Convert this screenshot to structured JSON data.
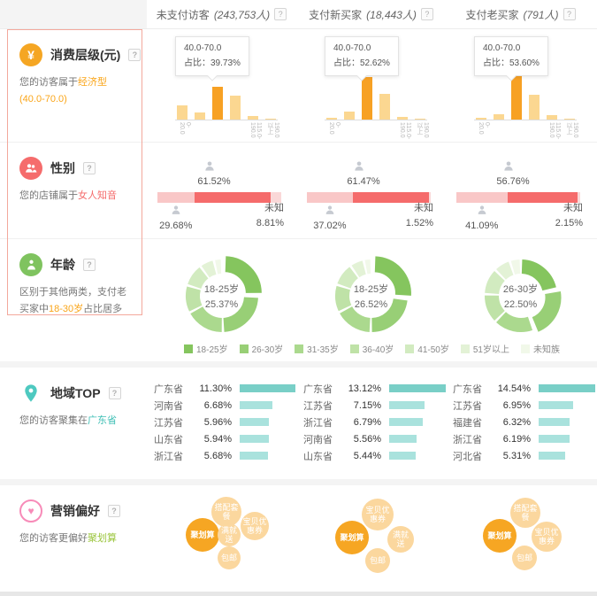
{
  "header": {
    "help_icon": "?",
    "columns": [
      {
        "label": "未支付访客",
        "count": "(243,753人)"
      },
      {
        "label": "支付新买家",
        "count": "(18,443人)"
      },
      {
        "label": "支付老买家",
        "count": "(791人)"
      }
    ]
  },
  "sidebar": {
    "help_icon": "?",
    "rows": [
      {
        "title": "消费层级(元)",
        "icon": "yen-icon",
        "icon_glyph": "¥",
        "desc_prefix": "您的访客属于",
        "desc_highlight": "经济型(40.0-70.0)",
        "desc_suffix": ""
      },
      {
        "title": "性别",
        "icon": "gender-people-icon",
        "desc_prefix": "您的店铺属于",
        "desc_highlight": "女人知音",
        "desc_suffix": ""
      },
      {
        "title": "年龄",
        "icon": "age-person-icon",
        "desc_prefix": "区别于其他两类，支付老买家中",
        "desc_highlight": "18-30岁",
        "desc_suffix": "占比居多"
      },
      {
        "title": "地域TOP",
        "icon": "location-pin-icon",
        "desc_prefix": "您的访客聚集在",
        "desc_highlight": "广东省",
        "desc_suffix": ""
      },
      {
        "title": "营销偏好",
        "icon": "heart-icon",
        "icon_glyph": "♥",
        "desc_prefix": "您的访客更偏好",
        "desc_highlight": "聚划算",
        "desc_suffix": ""
      }
    ]
  },
  "chart_data": {
    "consumption": {
      "type": "bar",
      "title": "消费层级(元)",
      "categories": [
        "0-20.0",
        "20.0-40.0",
        "40.0-70.0",
        "70.0-115.0",
        "115.0-190.0",
        "190.0以上"
      ],
      "highlight_index": 2,
      "bar_color": "#FBD791",
      "highlight_color": "#F7A124",
      "series": [
        {
          "name": "未支付访客",
          "tooltip_title": "40.0-70.0",
          "tooltip_label": "占比：",
          "tooltip_value": "39.73%",
          "values": [
            17,
            9,
            39.73,
            29,
            4,
            1.2
          ]
        },
        {
          "name": "支付新买家",
          "tooltip_title": "40.0-70.0",
          "tooltip_label": "占比：",
          "tooltip_value": "52.62%",
          "values": [
            2.5,
            10,
            52.62,
            31,
            3.5,
            1.2
          ]
        },
        {
          "name": "支付老买家",
          "tooltip_title": "40.0-70.0",
          "tooltip_label": "占比：",
          "tooltip_value": "53.60%",
          "values": [
            2.5,
            6.5,
            53.6,
            30,
            5,
            1.5
          ]
        }
      ]
    },
    "gender": {
      "type": "stacked-bar",
      "title": "性别",
      "unknown_label": "未知",
      "colors": {
        "male": "#F9C7C7",
        "female": "#F56B6B",
        "unknown": "#FAD8D8"
      },
      "series": [
        {
          "name": "未支付访客",
          "male": 29.68,
          "female": 61.52,
          "unknown": 8.81,
          "male_pct": "29.68%",
          "female_pct": "61.52%",
          "unknown_pct": "8.81%"
        },
        {
          "name": "支付新买家",
          "male": 37.02,
          "female": 61.47,
          "unknown": 1.52,
          "male_pct": "37.02%",
          "female_pct": "61.47%",
          "unknown_pct": "1.52%"
        },
        {
          "name": "支付老买家",
          "male": 41.09,
          "female": 56.76,
          "unknown": 2.15,
          "male_pct": "41.09%",
          "female_pct": "56.76%",
          "unknown_pct": "2.15%"
        }
      ]
    },
    "age": {
      "type": "donut",
      "title": "年龄",
      "legend": [
        "18-25岁",
        "26-30岁",
        "31-35岁",
        "36-40岁",
        "41-50岁",
        "51岁以上",
        "未知族"
      ],
      "colors": [
        "#85C55E",
        "#98CF76",
        "#ABD98E",
        "#BFE2A7",
        "#D2EBC0",
        "#E3F2D6",
        "#F1F8E9"
      ],
      "series": [
        {
          "name": "未支付访客",
          "center_label": "18-25岁",
          "center_value": "25.37%",
          "highlight_index": 0,
          "values": [
            25.37,
            24.2,
            17.8,
            12.3,
            10.2,
            6.5,
            3.63
          ]
        },
        {
          "name": "支付新买家",
          "center_label": "18-25岁",
          "center_value": "26.52%",
          "highlight_index": 0,
          "values": [
            26.52,
            23.8,
            17.2,
            12.4,
            10.3,
            6.3,
            3.48
          ]
        },
        {
          "name": "支付老买家",
          "center_label": "26-30岁",
          "center_value": "22.50%",
          "highlight_index": 1,
          "values": [
            21.8,
            22.5,
            18.2,
            13.2,
            11.8,
            7.5,
            5.0
          ]
        }
      ]
    },
    "region": {
      "type": "horizontal-bar",
      "title": "地域TOP",
      "bar_color": "#A9E2DD",
      "first_bar_color": "#79CFC7",
      "series": [
        {
          "name": "未支付访客",
          "rows": [
            {
              "label": "广东省",
              "pct": "11.30%",
              "value": 11.3
            },
            {
              "label": "河南省",
              "pct": "6.68%",
              "value": 6.68
            },
            {
              "label": "江苏省",
              "pct": "5.96%",
              "value": 5.96
            },
            {
              "label": "山东省",
              "pct": "5.94%",
              "value": 5.94
            },
            {
              "label": "浙江省",
              "pct": "5.68%",
              "value": 5.68
            }
          ]
        },
        {
          "name": "支付新买家",
          "rows": [
            {
              "label": "广东省",
              "pct": "13.12%",
              "value": 13.12
            },
            {
              "label": "江苏省",
              "pct": "7.15%",
              "value": 7.15
            },
            {
              "label": "浙江省",
              "pct": "6.79%",
              "value": 6.79
            },
            {
              "label": "河南省",
              "pct": "5.56%",
              "value": 5.56
            },
            {
              "label": "山东省",
              "pct": "5.44%",
              "value": 5.44
            }
          ]
        },
        {
          "name": "支付老买家",
          "rows": [
            {
              "label": "广东省",
              "pct": "14.54%",
              "value": 14.54
            },
            {
              "label": "江苏省",
              "pct": "6.95%",
              "value": 6.95
            },
            {
              "label": "福建省",
              "pct": "6.32%",
              "value": 6.32
            },
            {
              "label": "浙江省",
              "pct": "6.19%",
              "value": 6.19
            },
            {
              "label": "河北省",
              "pct": "5.31%",
              "value": 5.31
            }
          ]
        }
      ]
    },
    "marketing": {
      "type": "bubble",
      "title": "营销偏好",
      "bubble_color": "#FBD79E",
      "highlight_color": "#F6A623",
      "series": [
        {
          "name": "未支付访客",
          "bubbles": [
            {
              "label": "搭配套餐",
              "x": 60,
              "y": 24,
              "r": 17,
              "hl": false
            },
            {
              "label": "聚划算",
              "x": 33,
              "y": 50,
              "r": 19,
              "hl": true
            },
            {
              "label": "满就送",
              "x": 63,
              "y": 50,
              "r": 13,
              "hl": false
            },
            {
              "label": "宝贝优惠券",
              "x": 92,
              "y": 40,
              "r": 16,
              "hl": false
            },
            {
              "label": "包邮",
              "x": 63,
              "y": 76,
              "r": 13,
              "hl": false
            }
          ]
        },
        {
          "name": "支付新买家",
          "bubbles": [
            {
              "label": "宝贝优惠券",
              "x": 62,
              "y": 27,
              "r": 18,
              "hl": false
            },
            {
              "label": "聚划算",
              "x": 33,
              "y": 53,
              "r": 19,
              "hl": true
            },
            {
              "label": "满就送",
              "x": 88,
              "y": 55,
              "r": 15,
              "hl": false
            },
            {
              "label": "包邮",
              "x": 62,
              "y": 79,
              "r": 14,
              "hl": false
            }
          ]
        },
        {
          "name": "支付老买家",
          "bubbles": [
            {
              "label": "搭配套餐",
              "x": 60,
              "y": 25,
              "r": 17,
              "hl": false
            },
            {
              "label": "聚划算",
              "x": 31,
              "y": 51,
              "r": 19,
              "hl": true
            },
            {
              "label": "宝贝优惠券",
              "x": 84,
              "y": 52,
              "r": 17,
              "hl": false
            },
            {
              "label": "包邮",
              "x": 59,
              "y": 76,
              "r": 14,
              "hl": false
            }
          ]
        }
      ]
    }
  }
}
